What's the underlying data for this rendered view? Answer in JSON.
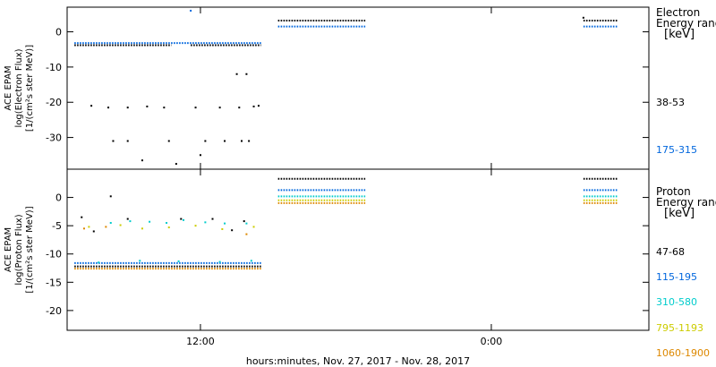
{
  "chart_data": {
    "type": "scatter",
    "xlabel": "hours:minutes, Nov. 27, 2017 - Nov. 28, 2017",
    "x_unit": "hours since 2017-11-27 00:00",
    "xlim": [
      6.5,
      30.5
    ],
    "x_ticks": [
      {
        "value": 12,
        "label": "12:00"
      },
      {
        "value": 24,
        "label": "0:00"
      },
      {
        "value": 36,
        "label": "12:00"
      }
    ],
    "panels": [
      {
        "ylabel_lines": [
          "ACE EPAM",
          "log(Electron Flux)",
          "[1/(cm²s ster MeV)]"
        ],
        "ylim": [
          -39,
          7
        ],
        "y_ticks": [
          0,
          -10,
          -20,
          -30
        ],
        "legend_title_lines": [
          "Electron",
          "Energy ranges",
          "[keV]"
        ],
        "series": [
          {
            "name": "38-53",
            "color": "#000000",
            "segments": [
              {
                "x_start": 6.8,
                "x_end": 10.8,
                "y": -3.8
              },
              {
                "x_start": 11.6,
                "x_end": 14.5,
                "y": -3.8
              },
              {
                "x_start": 15.2,
                "x_end": 18.8,
                "y": 3.2
              },
              {
                "x_start": 27.8,
                "x_end": 29.2,
                "y": 3.2
              }
            ],
            "points": [
              [
                7.5,
                -21
              ],
              [
                8.2,
                -21.5
              ],
              [
                9.0,
                -21.5
              ],
              [
                9.8,
                -21.2
              ],
              [
                10.5,
                -21.5
              ],
              [
                11.8,
                -21.5
              ],
              [
                12.8,
                -21.5
              ],
              [
                13.6,
                -21.5
              ],
              [
                14.2,
                -21.2
              ],
              [
                14.4,
                -21
              ],
              [
                8.4,
                -31
              ],
              [
                9.0,
                -31
              ],
              [
                10.7,
                -31
              ],
              [
                12.2,
                -31
              ],
              [
                13.0,
                -31
              ],
              [
                13.7,
                -31
              ],
              [
                14.0,
                -31
              ],
              [
                9.6,
                -36.5
              ],
              [
                11.0,
                -37.5
              ],
              [
                12.0,
                -35
              ],
              [
                13.5,
                -12
              ],
              [
                13.9,
                -12
              ],
              [
                27.8,
                4
              ]
            ]
          },
          {
            "name": "175-315",
            "color": "#0066dd",
            "segments": [
              {
                "x_start": 6.8,
                "x_end": 14.5,
                "y": -3.2
              },
              {
                "x_start": 15.2,
                "x_end": 18.8,
                "y": 1.5
              },
              {
                "x_start": 27.8,
                "x_end": 29.2,
                "y": 1.5
              }
            ],
            "points": [
              [
                11.6,
                6
              ]
            ]
          }
        ]
      },
      {
        "ylabel_lines": [
          "ACE EPAM",
          "log(Proton Flux)",
          "[1/(cm²s ster MeV)]"
        ],
        "ylim": [
          -23.5,
          5
        ],
        "y_ticks": [
          0,
          -5,
          -10,
          -15,
          -20
        ],
        "legend_title_lines": [
          "Proton",
          "Energy ranges",
          "[keV]"
        ],
        "series": [
          {
            "name": "47-68",
            "color": "#000000",
            "segments": [
              {
                "x_start": 6.8,
                "x_end": 14.5,
                "y": -12.2
              },
              {
                "x_start": 15.2,
                "x_end": 18.8,
                "y": 3.3
              },
              {
                "x_start": 27.8,
                "x_end": 29.2,
                "y": 3.3
              }
            ],
            "points": [
              [
                7.1,
                -3.5
              ],
              [
                8.3,
                0.2
              ],
              [
                9.0,
                -3.8
              ],
              [
                11.2,
                -3.8
              ],
              [
                12.5,
                -3.8
              ],
              [
                13.8,
                -4.2
              ],
              [
                7.6,
                -6
              ],
              [
                13.3,
                -5.8
              ]
            ]
          },
          {
            "name": "115-195",
            "color": "#0066dd",
            "segments": [
              {
                "x_start": 6.8,
                "x_end": 14.5,
                "y": -11.6
              },
              {
                "x_start": 15.2,
                "x_end": 18.8,
                "y": 1.3
              },
              {
                "x_start": 27.8,
                "x_end": 29.2,
                "y": 1.3
              }
            ],
            "points": []
          },
          {
            "name": "310-580",
            "color": "#00cccc",
            "segments": [
              {
                "x_start": 15.2,
                "x_end": 18.8,
                "y": 0.2
              },
              {
                "x_start": 27.8,
                "x_end": 29.2,
                "y": 0.2
              }
            ],
            "points": [
              [
                8.3,
                -4.5
              ],
              [
                9.1,
                -4.2
              ],
              [
                9.9,
                -4.3
              ],
              [
                10.6,
                -4.5
              ],
              [
                11.3,
                -4.0
              ],
              [
                12.2,
                -4.4
              ],
              [
                13.0,
                -4.6
              ],
              [
                13.9,
                -4.6
              ],
              [
                7.8,
                -11.5
              ],
              [
                9.5,
                -11.2
              ],
              [
                11.1,
                -11.3
              ],
              [
                12.8,
                -11.4
              ],
              [
                14.1,
                -11.2
              ]
            ]
          },
          {
            "name": "795-1193",
            "color": "#cccc00",
            "segments": [
              {
                "x_start": 15.2,
                "x_end": 18.8,
                "y": -0.5
              },
              {
                "x_start": 27.8,
                "x_end": 29.2,
                "y": -0.5
              }
            ],
            "points": [
              [
                7.4,
                -5.2
              ],
              [
                8.7,
                -4.9
              ],
              [
                9.6,
                -5.5
              ],
              [
                10.7,
                -5.3
              ],
              [
                11.8,
                -5.0
              ],
              [
                12.9,
                -5.6
              ],
              [
                14.2,
                -5.2
              ]
            ]
          },
          {
            "name": "1060-1900",
            "color": "#dd8800",
            "segments": [
              {
                "x_start": 6.8,
                "x_end": 14.5,
                "y": -12.6
              },
              {
                "x_start": 15.2,
                "x_end": 18.8,
                "y": -1.0
              },
              {
                "x_start": 27.8,
                "x_end": 29.2,
                "y": -1.0
              }
            ],
            "points": [
              [
                7.2,
                -5.5
              ],
              [
                8.1,
                -5.2
              ],
              [
                13.9,
                -6.5
              ]
            ]
          }
        ]
      }
    ]
  }
}
